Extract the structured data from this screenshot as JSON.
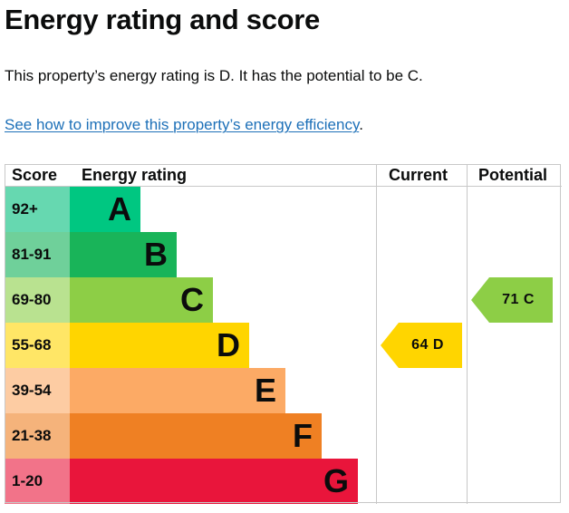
{
  "page": {
    "title": "Energy rating and score",
    "summary": "This property’s energy rating is D. It has the potential to be C.",
    "link_text": "See how to improve this property’s energy efficiency",
    "link_suffix": "."
  },
  "table": {
    "headers": {
      "score": "Score",
      "rating": "Energy rating",
      "current": "Current",
      "potential": "Potential"
    },
    "bands": [
      {
        "score": "92+",
        "letter": "A",
        "color": "#00c781",
        "score_bg": "#66d8b0"
      },
      {
        "score": "81-91",
        "letter": "B",
        "color": "#19b459",
        "score_bg": "#6fd09a"
      },
      {
        "score": "69-80",
        "letter": "C",
        "color": "#8dce46",
        "score_bg": "#b9e290"
      },
      {
        "score": "55-68",
        "letter": "D",
        "color": "#ffd500",
        "score_bg": "#ffe666"
      },
      {
        "score": "39-54",
        "letter": "E",
        "color": "#fcaa65",
        "score_bg": "#fdcca3"
      },
      {
        "score": "21-38",
        "letter": "F",
        "color": "#ef8023",
        "score_bg": "#f5b37b"
      },
      {
        "score": "1-20",
        "letter": "G",
        "color": "#e9153b",
        "score_bg": "#f27389"
      }
    ],
    "current": {
      "score": "64",
      "letter": "D",
      "label": "64  D",
      "color": "#ffd500"
    },
    "potential": {
      "score": "71",
      "letter": "C",
      "label": "71  C",
      "color": "#8dce46"
    }
  }
}
